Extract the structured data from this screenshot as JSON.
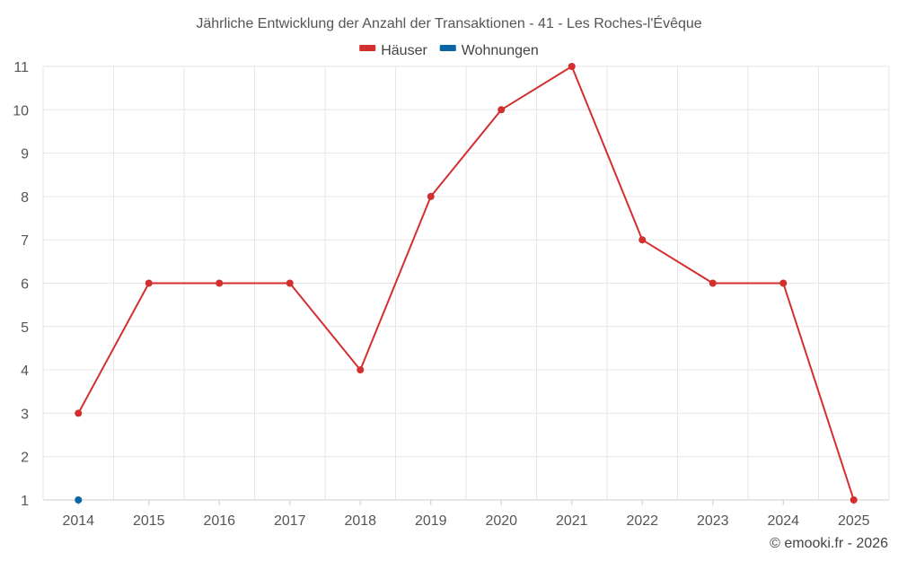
{
  "chart_data": {
    "type": "line",
    "title": "Jährliche Entwicklung der Anzahl der Transaktionen - 41 - Les Roches-l'Évêque",
    "categories": [
      "2014",
      "2015",
      "2016",
      "2017",
      "2018",
      "2019",
      "2020",
      "2021",
      "2022",
      "2023",
      "2024",
      "2025"
    ],
    "series": [
      {
        "name": "Häuser",
        "color": "#d32f2f",
        "values": [
          3,
          6,
          6,
          6,
          4,
          8,
          10,
          11,
          7,
          6,
          6,
          1
        ]
      },
      {
        "name": "Wohnungen",
        "color": "#0b67a3",
        "values": [
          1,
          null,
          null,
          null,
          null,
          null,
          null,
          null,
          null,
          null,
          null,
          null
        ]
      }
    ],
    "ylim": [
      1,
      11
    ],
    "yticks": [
      1,
      2,
      3,
      4,
      5,
      6,
      7,
      8,
      9,
      10,
      11
    ],
    "xlabel": "",
    "ylabel": "",
    "grid": true,
    "legend_position": "top-center"
  },
  "credit": "© emooki.fr - 2026"
}
